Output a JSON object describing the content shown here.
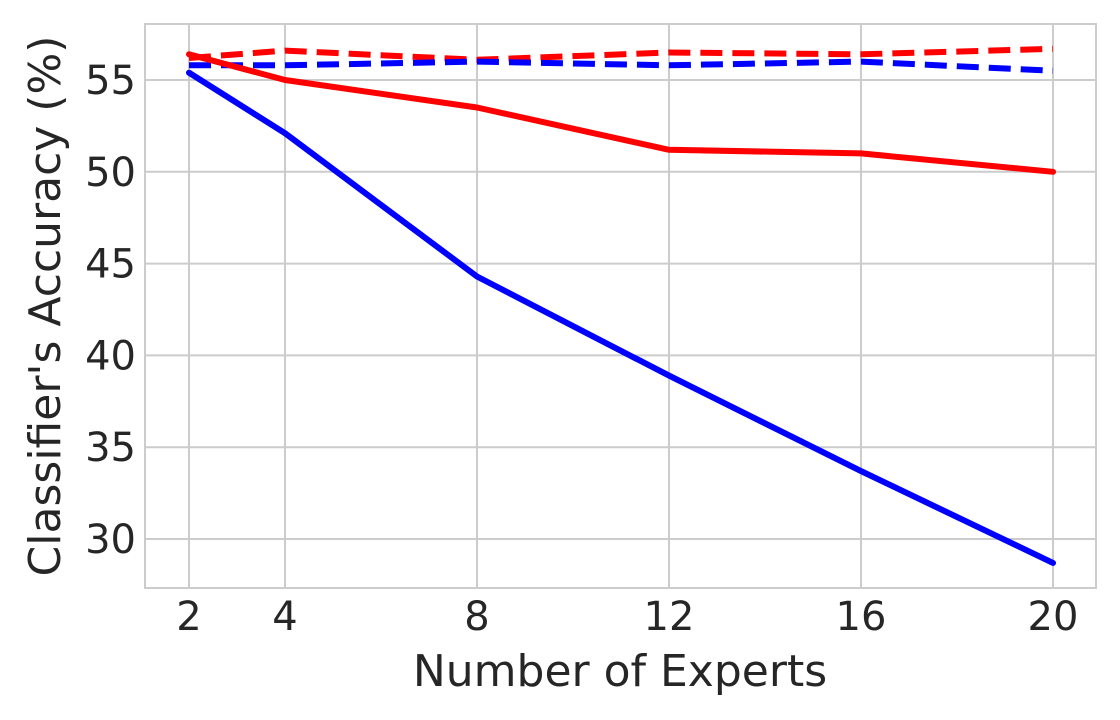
{
  "chart_data": {
    "type": "line",
    "title": "",
    "xlabel": "Number of Experts",
    "ylabel": "Classifier's Accuracy (%)",
    "x": [
      2,
      4,
      8,
      12,
      16,
      20
    ],
    "xticks": [
      "2",
      "4",
      "8",
      "12",
      "16",
      "20"
    ],
    "yticks": [
      "30",
      "35",
      "40",
      "45",
      "50",
      "55"
    ],
    "ytick_values": [
      30,
      35,
      40,
      45,
      50,
      55
    ],
    "xlim": [
      0.9,
      20.9
    ],
    "ylim": [
      27.4,
      58.0
    ],
    "grid": true,
    "legend": null,
    "series": [
      {
        "name": "red-dashed",
        "color": "#ff0000",
        "style": "dashed",
        "values": [
          56.2,
          56.6,
          56.1,
          56.5,
          56.4,
          56.7
        ]
      },
      {
        "name": "blue-dashed",
        "color": "#0000ff",
        "style": "dashed",
        "values": [
          55.8,
          55.8,
          56.0,
          55.8,
          56.0,
          55.5
        ]
      },
      {
        "name": "red-solid",
        "color": "#ff0000",
        "style": "solid",
        "values": [
          56.4,
          55.0,
          53.5,
          51.2,
          51.0,
          50.0
        ]
      },
      {
        "name": "blue-solid",
        "color": "#0000ff",
        "style": "solid",
        "values": [
          55.4,
          52.1,
          44.3,
          38.9,
          33.7,
          28.7
        ]
      }
    ]
  }
}
